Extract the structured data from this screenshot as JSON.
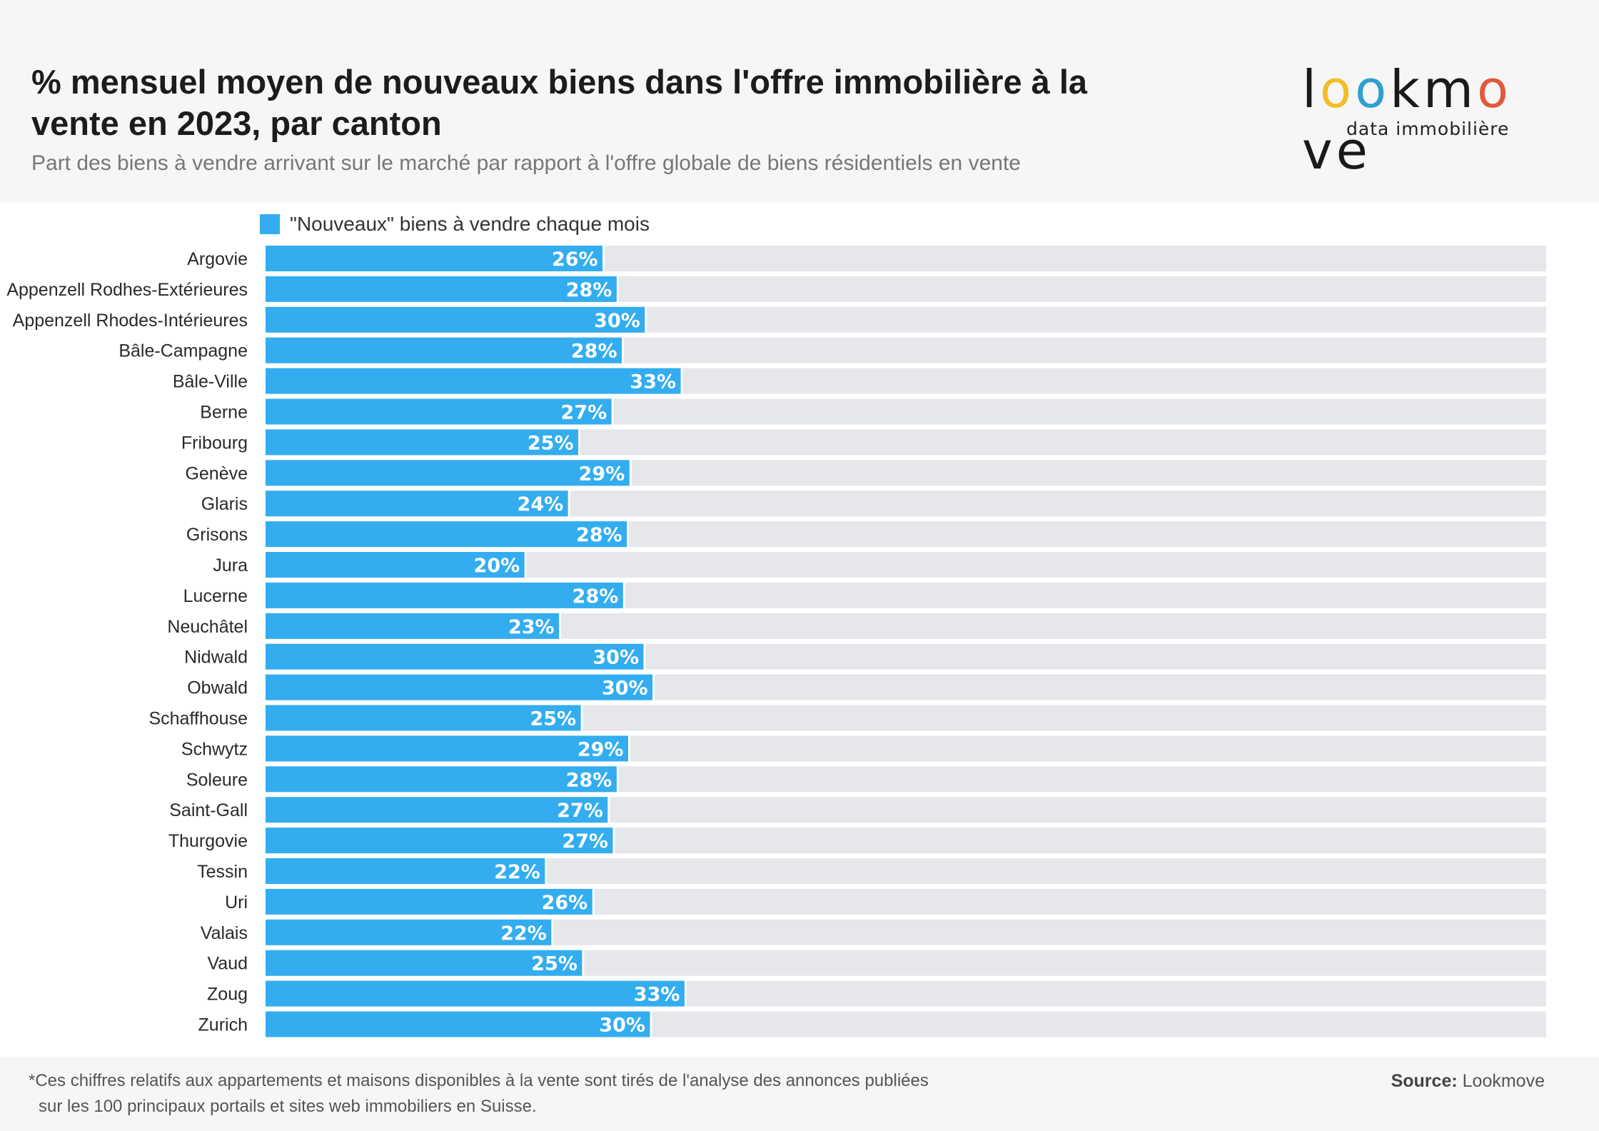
{
  "header": {
    "title": "% mensuel moyen de nouveaux biens dans l'offre immobilière à la vente en 2023, par canton",
    "subtitle": "Part des biens à vendre arrivant sur le marché par rapport à l'offre globale de biens résidentiels en vente"
  },
  "logo": {
    "letters": [
      "l",
      "o",
      "o",
      "k",
      "m",
      "o",
      "v",
      "e"
    ],
    "letter_colors": [
      "#1a1a1a",
      "#f2bd2a",
      "#2f9fcf",
      "#1a1a1a",
      "#1a1a1a",
      "#e15a3c",
      "#1a1a1a",
      "#1a1a1a"
    ],
    "tagline": "data immobilière"
  },
  "legend": {
    "label": "\"Nouveaux\" biens à vendre chaque mois",
    "color": "#33adef"
  },
  "chart_data": {
    "type": "bar",
    "orientation": "horizontal",
    "categories": [
      "Argovie",
      "Appenzell Rodhes-Extérieures",
      "Appenzell Rhodes-Intérieures",
      "Bâle-Campagne",
      "Bâle-Ville",
      "Berne",
      "Fribourg",
      "Genève",
      "Glaris",
      "Grisons",
      "Jura",
      "Lucerne",
      "Neuchâtel",
      "Nidwald",
      "Obwald",
      "Schaffhouse",
      "Schwytz",
      "Soleure",
      "Saint-Gall",
      "Thurgovie",
      "Tessin",
      "Uri",
      "Valais",
      "Vaud",
      "Zoug",
      "Zurich"
    ],
    "series": [
      {
        "name": "\"Nouveaux\" biens à vendre chaque mois",
        "values": [
          26.4,
          27.5,
          29.7,
          27.9,
          32.5,
          27.1,
          24.5,
          28.5,
          23.7,
          28.3,
          20.3,
          28.0,
          23.0,
          29.6,
          30.3,
          24.7,
          28.4,
          27.5,
          26.8,
          27.2,
          21.9,
          25.6,
          22.4,
          24.8,
          32.8,
          30.1
        ]
      }
    ],
    "data_labels": [
      "26%",
      "28%",
      "30%",
      "28%",
      "33%",
      "27%",
      "25%",
      "29%",
      "24%",
      "28%",
      "20%",
      "28%",
      "23%",
      "30%",
      "30%",
      "25%",
      "29%",
      "28%",
      "27%",
      "27%",
      "22%",
      "26%",
      "22%",
      "25%",
      "33%",
      "30%"
    ],
    "xlim": [
      0,
      100
    ],
    "bar_color": "#33adef",
    "track_color": "#e5e7eb",
    "legend_position": "top-left",
    "grid": false
  },
  "footer": {
    "footnote_line1": "*Ces chiffres relatifs aux appartements et maisons disponibles à la vente sont tirés de l'analyse des annonces publiées",
    "footnote_line2": "sur les 100 principaux portails et sites web immobiliers en Suisse.",
    "source_label": "Source:",
    "source_value": "Lookmove"
  }
}
